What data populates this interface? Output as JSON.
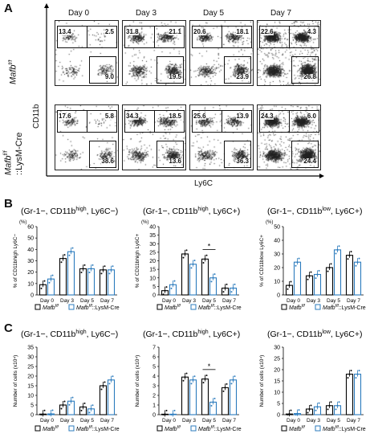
{
  "panelA": {
    "letter": "A",
    "days": [
      "Day 0",
      "Day 3",
      "Day 5",
      "Day 7"
    ],
    "rows": [
      {
        "label": "Mafb",
        "sup": "f/f",
        "suffix": ""
      },
      {
        "label": "Mafb",
        "sup": "f/f",
        "suffix": "::LysM-Cre"
      }
    ],
    "ylabel": "CD11b",
    "xlabel": "Ly6C",
    "gates": [
      [
        [
          "13.4",
          "2.5",
          "9.0"
        ],
        [
          "31.8",
          "21.1",
          "19.5"
        ],
        [
          "20.6",
          "18.1",
          "23.9"
        ],
        [
          "22.6",
          "4.3",
          "26.8"
        ]
      ],
      [
        [
          "17.6",
          "5.8",
          "38.6"
        ],
        [
          "34.3",
          "18.5",
          "13.6"
        ],
        [
          "25.6",
          "13.9",
          "36.3"
        ],
        [
          "24.3",
          "6.0",
          "24.4"
        ]
      ]
    ]
  },
  "panelB": {
    "letter": "B"
  },
  "panelC": {
    "letter": "C"
  },
  "legend": {
    "wt": "Mafb",
    "wt_sup": "f/f",
    "ko": "Mafb",
    "ko_sup": "f/f",
    "ko_suffix": "::LysM-Cre"
  },
  "colors": {
    "wt": "#000000",
    "ko": "#2b7bbd"
  },
  "chart_data": [
    {
      "type": "bar",
      "title": "(Gr-1−, CD11b^high, Ly6C−)",
      "ylabel": "% of CD11b^high Ly6C−",
      "unit": "(%)",
      "categories": [
        "Day 0",
        "Day 3",
        "Day 5",
        "Day 7"
      ],
      "ylim": [
        0,
        60
      ],
      "yticks": [
        0,
        10,
        20,
        30,
        40,
        50,
        60
      ],
      "series": [
        {
          "name": "Mafb f/f",
          "values": [
            9,
            32,
            23,
            22
          ]
        },
        {
          "name": "Mafb f/f::LysM-Cre",
          "values": [
            14,
            38,
            23,
            22
          ]
        }
      ],
      "sig": []
    },
    {
      "type": "bar",
      "title": "(Gr-1−, CD11b^high, Ly6C+)",
      "ylabel": "% of CD11b^high Ly6C+",
      "unit": "(%)",
      "categories": [
        "Day 0",
        "Day 3",
        "Day 5",
        "Day 7"
      ],
      "ylim": [
        0,
        40
      ],
      "yticks": [
        0,
        5,
        10,
        15,
        20,
        25,
        30,
        35,
        40
      ],
      "series": [
        {
          "name": "Mafb f/f",
          "values": [
            2.5,
            24,
            21,
            4
          ]
        },
        {
          "name": "Mafb f/f::LysM-Cre",
          "values": [
            6,
            18,
            10,
            4
          ]
        }
      ],
      "sig": [
        2
      ]
    },
    {
      "type": "bar",
      "title": "(Gr-1−, CD11b^low, Ly6C+)",
      "ylabel": "% of CD11b^low Ly6C+",
      "unit": "(%)",
      "categories": [
        "Day 0",
        "Day 3",
        "Day 5",
        "Day 7"
      ],
      "ylim": [
        0,
        50
      ],
      "yticks": [
        0,
        10,
        20,
        30,
        40,
        50
      ],
      "series": [
        {
          "name": "Mafb f/f",
          "values": [
            7,
            14,
            20,
            29
          ]
        },
        {
          "name": "Mafb f/f::LysM-Cre",
          "values": [
            24,
            15,
            33,
            24
          ]
        }
      ],
      "sig": []
    },
    {
      "type": "bar",
      "title": "(Gr-1−, CD11b^high, Ly6C−)",
      "ylabel": "Number of cells (x10^4)",
      "unit": "",
      "categories": [
        "Day 0",
        "Day 3",
        "Day 5",
        "Day 7"
      ],
      "ylim": [
        0,
        35
      ],
      "yticks": [
        0,
        5,
        10,
        15,
        20,
        25,
        30,
        35
      ],
      "series": [
        {
          "name": "Mafb f/f",
          "values": [
            0.3,
            5,
            4,
            15
          ]
        },
        {
          "name": "Mafb f/f::LysM-Cre",
          "values": [
            0.4,
            7,
            3,
            18
          ]
        }
      ],
      "sig": []
    },
    {
      "type": "bar",
      "title": "(Gr-1−, CD11b^high, Ly6C+)",
      "ylabel": "Number of cells (x10^4)",
      "unit": "",
      "categories": [
        "Day 0",
        "Day 3",
        "Day 5",
        "Day 7"
      ],
      "ylim": [
        0,
        7
      ],
      "yticks": [
        0,
        1,
        2,
        3,
        4,
        5,
        6,
        7
      ],
      "series": [
        {
          "name": "Mafb f/f",
          "values": [
            0.05,
            3.9,
            3.7,
            2.8
          ]
        },
        {
          "name": "Mafb f/f::LysM-Cre",
          "values": [
            0.05,
            3.6,
            1.3,
            3.6
          ]
        }
      ],
      "sig": [
        2
      ]
    },
    {
      "type": "bar",
      "title": "(Gr-1−, CD11b^low, Ly6C+)",
      "ylabel": "Number of cells (x10^4)",
      "unit": "",
      "categories": [
        "Day 0",
        "Day 3",
        "Day 5",
        "Day 7"
      ],
      "ylim": [
        0,
        30
      ],
      "yticks": [
        0,
        5,
        10,
        15,
        20,
        25,
        30
      ],
      "series": [
        {
          "name": "Mafb f/f",
          "values": [
            0.3,
            2.5,
            4,
            18
          ]
        },
        {
          "name": "Mafb f/f::LysM-Cre",
          "values": [
            0.5,
            3.5,
            4,
            18
          ]
        }
      ],
      "sig": []
    }
  ]
}
